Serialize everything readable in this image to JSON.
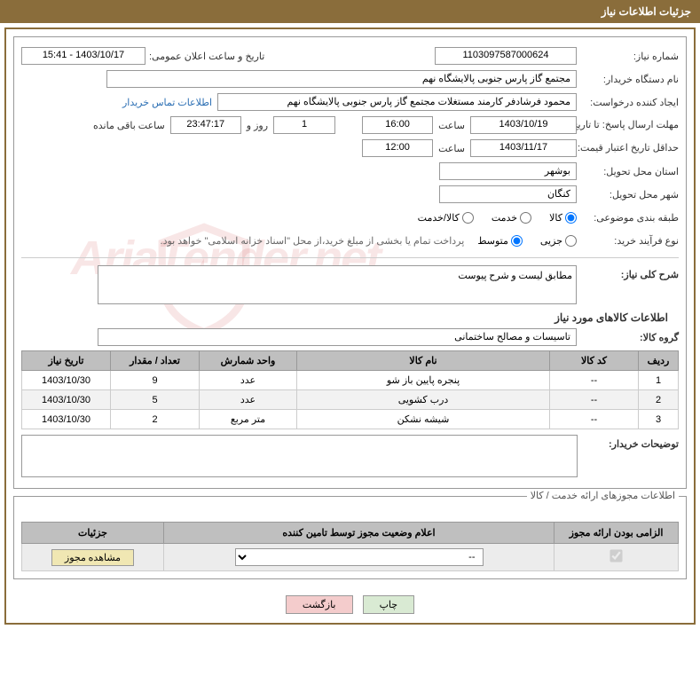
{
  "header": {
    "title": "جزئیات اطلاعات نیاز"
  },
  "form": {
    "need_number_label": "شماره نیاز:",
    "need_number": "1103097587000624",
    "announce_label": "تاریخ و ساعت اعلان عمومی:",
    "announce_value": "1403/10/17 - 15:41",
    "buyer_org_label": "نام دستگاه خریدار:",
    "buyer_org": "مجتمع گاز پارس جنوبی  پالایشگاه نهم",
    "req_creator_label": "ایجاد کننده درخواست:",
    "req_creator": "محمود فرشادفر کارمند مستغلات  مجتمع گاز پارس جنوبی  پالایشگاه نهم",
    "contact_link": "اطلاعات تماس خریدار",
    "deadline_send_label": "مهلت ارسال پاسخ: تا تاریخ:",
    "deadline_send_date": "1403/10/19",
    "time_word": "ساعت",
    "deadline_send_time": "16:00",
    "days_value": "1",
    "days_word": "روز و",
    "countdown": "23:47:17",
    "remaining_word": "ساعت باقی مانده",
    "min_valid_label": "حداقل تاریخ اعتبار قیمت: تا تاریخ:",
    "min_valid_date": "1403/11/17",
    "min_valid_time": "12:00",
    "province_label": "استان محل تحویل:",
    "province": "بوشهر",
    "city_label": "شهر محل تحویل:",
    "city": "کنگان",
    "category_label": "طبقه بندی موضوعی:",
    "purchase_type_label": "نوع فرآیند خرید:",
    "payment_note": "پرداخت تمام یا بخشی از مبلغ خرید،از محل \"اسناد خزانه اسلامی\" خواهد بود.",
    "desc_label": "شرح کلی نیاز:",
    "desc_text": "مطابق لیست و شرح پیوست",
    "goods_info_title": "اطلاعات کالاهای مورد نیاز",
    "goods_group_label": "گروه کالا:",
    "goods_group": "تاسیسات و مصالح ساختمانی",
    "buyer_notes_label": "توضیحات خریدار:",
    "buyer_notes": ""
  },
  "radios": {
    "goods": "کالا",
    "service": "خدمت",
    "goods_service": "کالا/خدمت",
    "partial": "جزیی",
    "medium": "متوسط"
  },
  "table": {
    "headers": {
      "row": "ردیف",
      "code": "کد کالا",
      "name": "نام کالا",
      "unit": "واحد شمارش",
      "qty": "تعداد / مقدار",
      "date": "تاریخ نیاز"
    },
    "rows": [
      {
        "row": "1",
        "code": "--",
        "name": "پنجره پایین باز شو",
        "unit": "عدد",
        "qty": "9",
        "date": "1403/10/30"
      },
      {
        "row": "2",
        "code": "--",
        "name": "درب کشویی",
        "unit": "عدد",
        "qty": "5",
        "date": "1403/10/30"
      },
      {
        "row": "3",
        "code": "--",
        "name": "شیشه نشکن",
        "unit": "متر مربع",
        "qty": "2",
        "date": "1403/10/30"
      }
    ]
  },
  "license": {
    "section_title": "اطلاعات مجوزهای ارائه خدمت / کالا",
    "headers": {
      "mandatory": "الزامی بودن ارائه مجوز",
      "status": "اعلام وضعیت مجوز توسط تامین کننده",
      "details": "جزئیات"
    },
    "select_placeholder": "--",
    "view_btn": "مشاهده مجوز"
  },
  "footer": {
    "print": "چاپ",
    "back": "بازگشت"
  },
  "colors": {
    "header_bg": "#8a6d3b",
    "border": "#999999",
    "th_bg": "#bfbfbf"
  }
}
